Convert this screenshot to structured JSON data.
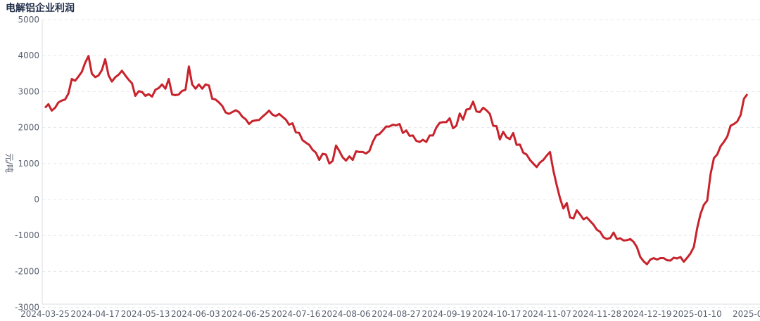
{
  "chart_data": {
    "type": "line",
    "title": "电解铝企业利润",
    "xlabel": "",
    "ylabel": "元/吨",
    "ylim": [
      -3000,
      5000
    ],
    "yticks": [
      5000,
      4000,
      3000,
      2000,
      1000,
      0,
      -1000,
      -2000,
      -3000
    ],
    "grid": true,
    "line_color": "#c8232c",
    "x_tick_labels": [
      "2024-03-25",
      "2024-04-17",
      "2024-05-13",
      "2024-06-03",
      "2024-06-25",
      "2024-07-16",
      "2024-08-06",
      "2024-08-27",
      "2024-09-19",
      "2024-10-17",
      "2024-11-07",
      "2024-11-28",
      "2024-12-19",
      "2025-01-10",
      "2025-0"
    ],
    "series": [
      {
        "values": [
          2550,
          2650,
          2470,
          2550,
          2700,
          2750,
          2780,
          2950,
          3350,
          3300,
          3420,
          3550,
          3800,
          3990,
          3500,
          3400,
          3450,
          3600,
          3900,
          3450,
          3280,
          3400,
          3470,
          3580,
          3450,
          3330,
          3230,
          2880,
          3010,
          2990,
          2880,
          2930,
          2860,
          3050,
          3100,
          3200,
          3080,
          3350,
          2920,
          2900,
          2920,
          3020,
          3050,
          3700,
          3200,
          3080,
          3200,
          3080,
          3200,
          3170,
          2800,
          2780,
          2700,
          2600,
          2420,
          2380,
          2430,
          2480,
          2430,
          2300,
          2230,
          2100,
          2180,
          2200,
          2210,
          2300,
          2380,
          2470,
          2360,
          2320,
          2380,
          2300,
          2220,
          2080,
          2120,
          1870,
          1850,
          1650,
          1580,
          1520,
          1380,
          1300,
          1100,
          1270,
          1250,
          1000,
          1070,
          1500,
          1350,
          1170,
          1080,
          1200,
          1100,
          1340,
          1320,
          1320,
          1280,
          1350,
          1600,
          1780,
          1820,
          1920,
          2030,
          2030,
          2080,
          2060,
          2100,
          1850,
          1920,
          1770,
          1780,
          1630,
          1600,
          1660,
          1600,
          1780,
          1780,
          2000,
          2130,
          2150,
          2150,
          2260,
          1980,
          2050,
          2390,
          2220,
          2500,
          2520,
          2720,
          2450,
          2430,
          2550,
          2480,
          2380,
          2050,
          2040,
          1670,
          1880,
          1730,
          1680,
          1850,
          1520,
          1530,
          1300,
          1250,
          1100,
          1000,
          900,
          1030,
          1100,
          1220,
          1320,
          800,
          400,
          30,
          -250,
          -100,
          -500,
          -530,
          -300,
          -420,
          -550,
          -500,
          -600,
          -700,
          -840,
          -900,
          -1050,
          -1100,
          -1070,
          -920,
          -1100,
          -1080,
          -1140,
          -1130,
          -1100,
          -1180,
          -1330,
          -1600,
          -1720,
          -1800,
          -1670,
          -1630,
          -1670,
          -1630,
          -1630,
          -1690,
          -1700,
          -1620,
          -1640,
          -1600,
          -1730,
          -1620,
          -1500,
          -1320,
          -800,
          -400,
          -150,
          -30,
          700,
          1150,
          1250,
          1480,
          1600,
          1750,
          2050,
          2100,
          2170,
          2350,
          2800,
          2930
        ]
      }
    ]
  }
}
